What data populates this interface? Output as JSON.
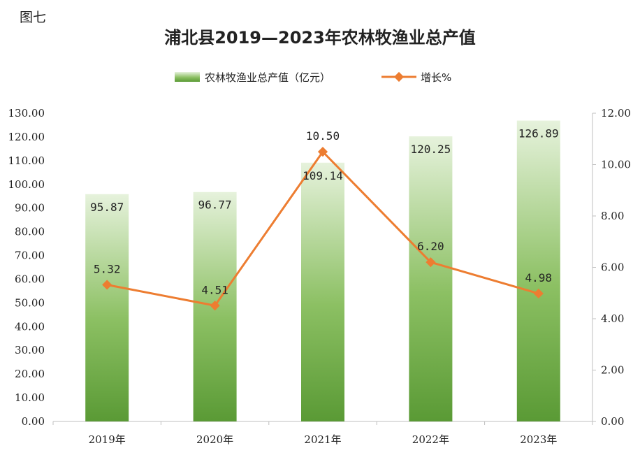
{
  "figure_label": "图七",
  "chart_data": {
    "type": "bar",
    "title": "浦北县2019—2023年农林牧渔业总产值",
    "categories": [
      "2019年",
      "2020年",
      "2021年",
      "2022年",
      "2023年"
    ],
    "series": [
      {
        "name": "农林牧渔业总产值（亿元）",
        "type": "bar",
        "axis": "left",
        "values": [
          95.87,
          96.77,
          109.14,
          120.25,
          126.89
        ],
        "labels": [
          "95.87",
          "96.77",
          "109.14",
          "120.25",
          "126.89"
        ],
        "color_top": "#e6f2dc",
        "color_bottom": "#5a9a35"
      },
      {
        "name": "增长%",
        "type": "line",
        "axis": "right",
        "values": [
          5.32,
          4.51,
          10.5,
          6.2,
          4.98
        ],
        "labels": [
          "5.32",
          "4.51",
          "10.50",
          "6.20",
          "4.98"
        ],
        "color": "#ed7d31"
      }
    ],
    "y_left": {
      "ylim": [
        0,
        130
      ],
      "ticks": [
        "0.00",
        "10.00",
        "20.00",
        "30.00",
        "40.00",
        "50.00",
        "60.00",
        "70.00",
        "80.00",
        "90.00",
        "100.00",
        "110.00",
        "120.00",
        "130.00"
      ]
    },
    "y_right": {
      "ylim": [
        0,
        12
      ],
      "ticks": [
        "0.00",
        "2.00",
        "4.00",
        "6.00",
        "8.00",
        "10.00",
        "12.00"
      ]
    },
    "legend_position": "top-center",
    "grid": false
  }
}
